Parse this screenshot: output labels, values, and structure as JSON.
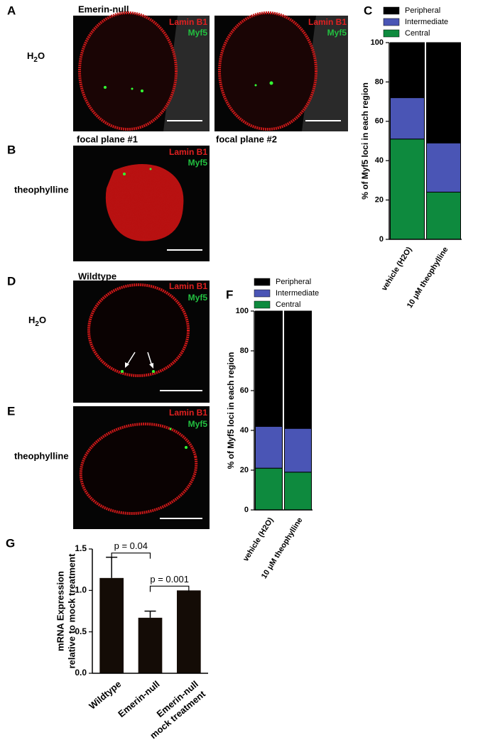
{
  "figure": {
    "panel_labels": [
      "A",
      "B",
      "C",
      "D",
      "E",
      "F",
      "G"
    ],
    "row_titles": [
      "Emerin-null",
      "Wildtype"
    ],
    "focal_planes": [
      "focal plane #1",
      "focal plane #2"
    ],
    "conditions": [
      [
        "H",
        "2",
        "O"
      ],
      "theophylline",
      [
        "H",
        "2",
        "O"
      ],
      "theophylline"
    ],
    "images": [
      {
        "stain1": "Lamin B1",
        "stain2": "Myf5"
      },
      {
        "stain1": "Lamin B1",
        "stain2": "Myf5"
      },
      {
        "stain1": "Lamin B1",
        "stain2": "Myf5"
      },
      {
        "stain1": "Lamin B1",
        "stain2": "Myf5"
      },
      {
        "stain1": "Lamin B1",
        "stain2": "Myf5"
      }
    ]
  },
  "chart_data": [
    {
      "type": "stacked-bar",
      "ylabel": "% of Myf5 loci in each region",
      "categories": [
        "vehicle (H2O)",
        "10 μM theophylline"
      ],
      "series": [
        {
          "name": "Peripheral",
          "color": "#000000",
          "values": [
            28,
            51
          ]
        },
        {
          "name": "Intermediate",
          "color": "#4a55b5",
          "values": [
            21,
            25
          ]
        },
        {
          "name": "Central",
          "color": "#0e8a3e",
          "values": [
            51,
            24
          ]
        }
      ],
      "ylim": [
        0,
        100
      ],
      "yticks": [
        0,
        20,
        40,
        60,
        80,
        100
      ]
    },
    {
      "type": "stacked-bar",
      "ylabel": "% of Myf5 loci in each region",
      "categories": [
        "vehicle (H2O)",
        "10 μM theophylline"
      ],
      "series": [
        {
          "name": "Peripheral",
          "color": "#000000",
          "values": [
            58,
            59
          ]
        },
        {
          "name": "Intermediate",
          "color": "#4a55b5",
          "values": [
            21,
            22
          ]
        },
        {
          "name": "Central",
          "color": "#0e8a3e",
          "values": [
            21,
            19
          ]
        }
      ],
      "ylim": [
        0,
        100
      ],
      "yticks": [
        0,
        20,
        40,
        60,
        80,
        100
      ]
    },
    {
      "type": "bar",
      "ylabel": [
        "mRNA Expression",
        "relative to mock treatment"
      ],
      "categories": [
        [
          "Wildtype"
        ],
        [
          "Emerin-null"
        ],
        [
          "Emerin-null",
          "mock treatment"
        ]
      ],
      "values": [
        1.15,
        0.67,
        1.0
      ],
      "errors": [
        0.25,
        0.08,
        null
      ],
      "color": "#140c06",
      "annotations": [
        "p = 0.04",
        "p = 0.001"
      ],
      "ylim": [
        0,
        1.5
      ],
      "yticks": [
        {
          "value": 0,
          "label": "0.0"
        },
        {
          "value": 0.5,
          "label": "0.5"
        },
        {
          "value": 1,
          "label": "1.0"
        },
        {
          "value": 1.5,
          "label": "1.5"
        }
      ]
    }
  ]
}
